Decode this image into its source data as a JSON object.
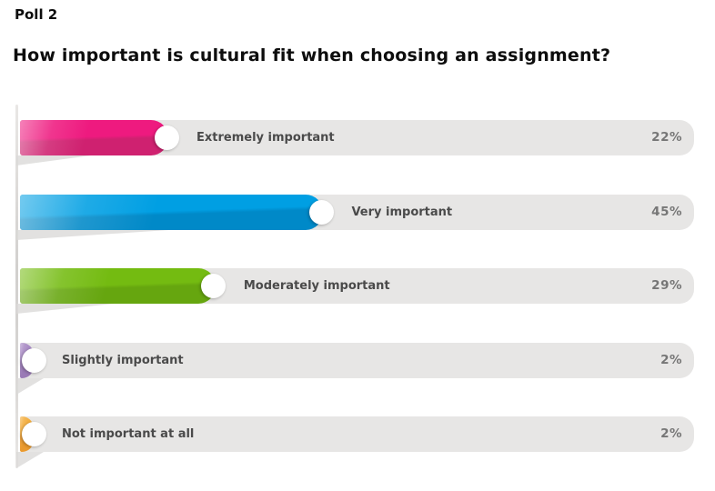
{
  "header": {
    "eyebrow": "Poll 2",
    "question": "How important is cultural fit when choosing an assignment?"
  },
  "chart_data": {
    "type": "bar",
    "orientation": "horizontal",
    "title": "How important is cultural fit when choosing an assignment?",
    "xlim": [
      0,
      100
    ],
    "grid": false,
    "legend": "none",
    "value_label_position": "right-end-of-track",
    "categories": [
      "Extremely important",
      "Very important",
      "Moderately important",
      "Slightly important",
      "Not important at all"
    ],
    "values": [
      22,
      45,
      29,
      2,
      2
    ],
    "bars": [
      {
        "label": "Extremely important",
        "pct": 22,
        "display": "22%",
        "color_top": "#ee1a7f",
        "color_bottom": "#cf2170"
      },
      {
        "label": "Very important",
        "pct": 45,
        "display": "45%",
        "color_top": "#009fe3",
        "color_bottom": "#0089c8"
      },
      {
        "label": "Moderately important",
        "pct": 29,
        "display": "29%",
        "color_top": "#74bb11",
        "color_bottom": "#66a60f"
      },
      {
        "label": "Slightly important",
        "pct": 2,
        "display": "2%",
        "color_top": "#a98bc5",
        "color_bottom": "#9a7ab6"
      },
      {
        "label": "Not important at all",
        "pct": 2,
        "display": "2%",
        "color_top": "#f3ad3d",
        "color_bottom": "#ea9a2e"
      }
    ]
  },
  "colors": {
    "background": "#ffffff",
    "track": "#e7e6e5",
    "axis_line": "#d6d4d2",
    "fold_shadow": "#dbdad8",
    "answer_text": "#4a4a4a",
    "percent_text": "#767676",
    "title_text": "#0d0d0d",
    "end_dot": "#ffffff"
  }
}
